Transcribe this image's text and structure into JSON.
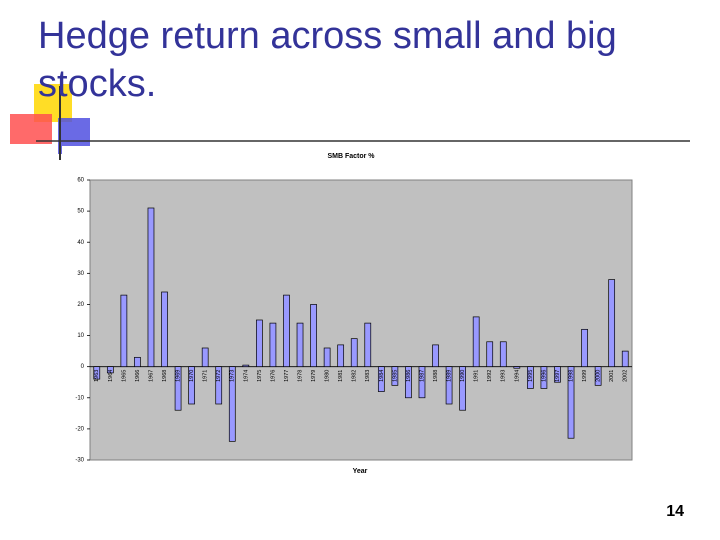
{
  "title": "Hedge return across small and big stocks.",
  "slide_number": "14",
  "chart_data": {
    "type": "bar",
    "title": "SMB Factor %",
    "x_label": "Year",
    "categories": [
      "1963",
      "1964",
      "1965",
      "1966",
      "1967",
      "1968",
      "1969",
      "1970",
      "1971",
      "1972",
      "1973",
      "1974",
      "1975",
      "1976",
      "1977",
      "1978",
      "1979",
      "1980",
      "1981",
      "1982",
      "1983",
      "1984",
      "1985",
      "1986",
      "1987",
      "1988",
      "1989",
      "1990",
      "1991",
      "1992",
      "1993",
      "1994",
      "1995",
      "1996",
      "1997",
      "1998",
      "1999",
      "2000",
      "2001",
      "2002"
    ],
    "values": [
      -4,
      -2,
      23,
      3,
      51,
      24,
      -14,
      -12,
      6,
      -12,
      -24,
      0.5,
      15,
      14,
      23,
      14,
      20,
      6,
      7,
      9,
      14,
      -8,
      -6,
      -10,
      -10,
      7,
      -12,
      -14,
      16,
      8,
      8,
      -0.5,
      -7,
      -7,
      -5,
      -23,
      12,
      -6,
      28,
      5
    ],
    "color": "#9999ff",
    "ylim": [
      -30,
      60
    ],
    "yticks": [
      -30,
      -20,
      -10,
      0,
      10,
      20,
      30,
      40,
      50,
      60
    ]
  }
}
